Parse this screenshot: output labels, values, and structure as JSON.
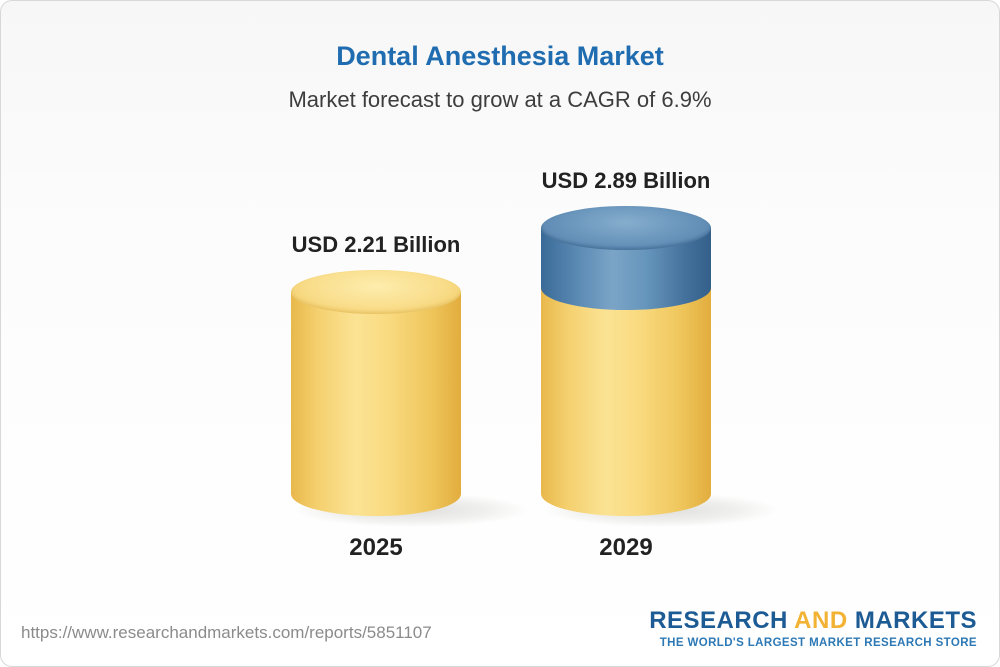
{
  "chart_data": {
    "type": "bar",
    "title": "Dental Anesthesia Market",
    "subtitle": "Market forecast to grow at a CAGR of 6.9%",
    "categories": [
      "2025",
      "2029"
    ],
    "values": [
      2.21,
      2.89
    ],
    "unit": "USD Billion",
    "value_labels": [
      "USD 2.21 Billion",
      "USD 2.89 Billion"
    ],
    "cagr": "6.9%",
    "grid": false,
    "legend_position": "none",
    "ylim": [
      0,
      3.2
    ],
    "colors": {
      "bar_2025": "#f6cf68",
      "bar_2029_base": "#f6cf68",
      "bar_2029_growth": "#4e81ab",
      "title": "#1f6cb0"
    }
  },
  "footer": {
    "url": "https://www.researchandmarkets.com/reports/5851107",
    "logo": {
      "research": "RESEARCH",
      "and": "AND",
      "markets": "MARKETS",
      "tagline": "THE WORLD'S LARGEST MARKET RESEARCH STORE"
    }
  }
}
